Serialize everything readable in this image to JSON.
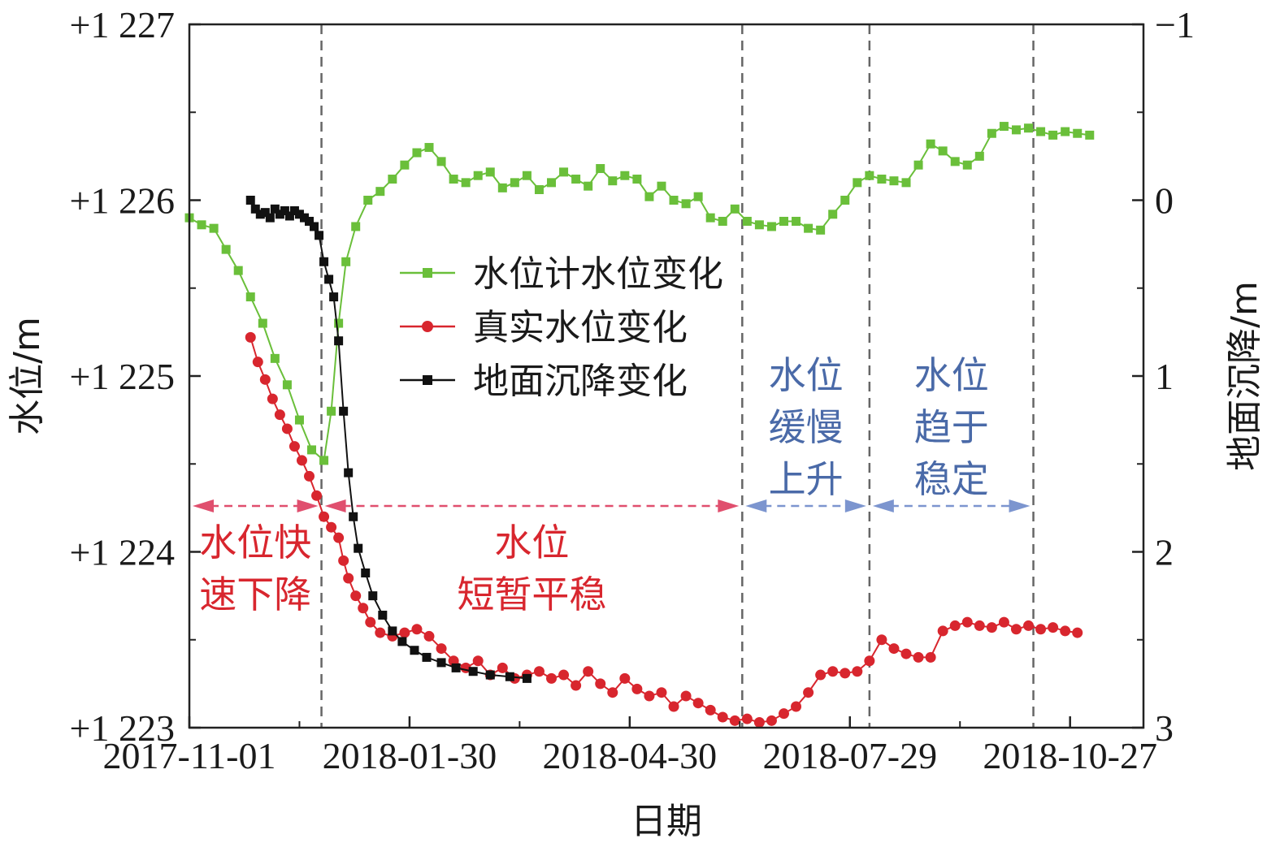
{
  "chart_data": {
    "type": "line",
    "xlabel": "日期",
    "ylabel": "水位/m",
    "y2label": "地面沉降/m",
    "x_ticks": [
      "2017-11-01",
      "2018-01-30",
      "2018-04-30",
      "2018-07-29",
      "2018-10-27"
    ],
    "xlim": [
      "2017-11-01",
      "2018-11-26"
    ],
    "y_ticks": [
      "+1 223",
      "+1 224",
      "+1 225",
      "+1 226",
      "+1 227"
    ],
    "ylim": [
      1223,
      1227
    ],
    "y2_ticks": [
      "−1",
      "0",
      "1",
      "2",
      "3"
    ],
    "y2lim": [
      3,
      -1
    ],
    "y2_inverted": true,
    "grid": false,
    "legend_position": "center-left",
    "phase_boundaries": [
      "2017-12-25",
      "2018-06-15",
      "2018-08-06",
      "2018-10-12"
    ],
    "phases": [
      {
        "lines": [
          "水位快",
          "速下降"
        ],
        "color": "#d8262e",
        "start": "2017-11-01",
        "end": "2017-12-25"
      },
      {
        "lines": [
          "水位",
          "短暂平稳"
        ],
        "color": "#d8262e",
        "start": "2017-12-25",
        "end": "2018-06-15"
      },
      {
        "lines": [
          "水位",
          "缓慢",
          "上升"
        ],
        "color": "#4a6aa8",
        "start": "2018-06-15",
        "end": "2018-08-06"
      },
      {
        "lines": [
          "水位",
          "趋于",
          "稳定"
        ],
        "color": "#4a6aa8",
        "start": "2018-08-06",
        "end": "2018-10-12"
      }
    ],
    "series": [
      {
        "name": "水位计水位变化",
        "axis": "left",
        "color": "#6abf3a",
        "marker": "square",
        "points": [
          [
            "2017-11-01",
            1225.9
          ],
          [
            "2017-11-06",
            1225.86
          ],
          [
            "2017-11-11",
            1225.84
          ],
          [
            "2017-11-16",
            1225.72
          ],
          [
            "2017-11-21",
            1225.6
          ],
          [
            "2017-11-26",
            1225.45
          ],
          [
            "2017-12-01",
            1225.3
          ],
          [
            "2017-12-06",
            1225.1
          ],
          [
            "2017-12-11",
            1224.95
          ],
          [
            "2017-12-16",
            1224.75
          ],
          [
            "2017-12-21",
            1224.58
          ],
          [
            "2017-12-26",
            1224.52
          ],
          [
            "2017-12-29",
            1224.8
          ],
          [
            "2018-01-01",
            1225.3
          ],
          [
            "2018-01-04",
            1225.65
          ],
          [
            "2018-01-08",
            1225.85
          ],
          [
            "2018-01-13",
            1226.0
          ],
          [
            "2018-01-18",
            1226.05
          ],
          [
            "2018-01-23",
            1226.12
          ],
          [
            "2018-01-28",
            1226.2
          ],
          [
            "2018-02-02",
            1226.27
          ],
          [
            "2018-02-07",
            1226.3
          ],
          [
            "2018-02-12",
            1226.22
          ],
          [
            "2018-02-17",
            1226.12
          ],
          [
            "2018-02-22",
            1226.1
          ],
          [
            "2018-02-27",
            1226.14
          ],
          [
            "2018-03-04",
            1226.16
          ],
          [
            "2018-03-09",
            1226.07
          ],
          [
            "2018-03-14",
            1226.1
          ],
          [
            "2018-03-19",
            1226.14
          ],
          [
            "2018-03-24",
            1226.06
          ],
          [
            "2018-03-29",
            1226.1
          ],
          [
            "2018-04-03",
            1226.16
          ],
          [
            "2018-04-08",
            1226.12
          ],
          [
            "2018-04-13",
            1226.08
          ],
          [
            "2018-04-18",
            1226.18
          ],
          [
            "2018-04-23",
            1226.11
          ],
          [
            "2018-04-28",
            1226.14
          ],
          [
            "2018-05-03",
            1226.12
          ],
          [
            "2018-05-08",
            1226.02
          ],
          [
            "2018-05-13",
            1226.08
          ],
          [
            "2018-05-18",
            1226.0
          ],
          [
            "2018-05-23",
            1225.98
          ],
          [
            "2018-05-28",
            1226.02
          ],
          [
            "2018-06-02",
            1225.9
          ],
          [
            "2018-06-07",
            1225.88
          ],
          [
            "2018-06-12",
            1225.95
          ],
          [
            "2018-06-17",
            1225.88
          ],
          [
            "2018-06-22",
            1225.86
          ],
          [
            "2018-06-27",
            1225.85
          ],
          [
            "2018-07-02",
            1225.88
          ],
          [
            "2018-07-07",
            1225.88
          ],
          [
            "2018-07-12",
            1225.84
          ],
          [
            "2018-07-17",
            1225.83
          ],
          [
            "2018-07-22",
            1225.92
          ],
          [
            "2018-07-27",
            1226.0
          ],
          [
            "2018-08-01",
            1226.1
          ],
          [
            "2018-08-06",
            1226.14
          ],
          [
            "2018-08-11",
            1226.12
          ],
          [
            "2018-08-16",
            1226.11
          ],
          [
            "2018-08-21",
            1226.1
          ],
          [
            "2018-08-26",
            1226.2
          ],
          [
            "2018-08-31",
            1226.32
          ],
          [
            "2018-09-05",
            1226.28
          ],
          [
            "2018-09-10",
            1226.22
          ],
          [
            "2018-09-15",
            1226.2
          ],
          [
            "2018-09-20",
            1226.25
          ],
          [
            "2018-09-25",
            1226.38
          ],
          [
            "2018-09-30",
            1226.42
          ],
          [
            "2018-10-05",
            1226.4
          ],
          [
            "2018-10-10",
            1226.41
          ],
          [
            "2018-10-15",
            1226.39
          ],
          [
            "2018-10-20",
            1226.37
          ],
          [
            "2018-10-25",
            1226.39
          ],
          [
            "2018-10-30",
            1226.38
          ],
          [
            "2018-11-04",
            1226.37
          ]
        ]
      },
      {
        "name": "真实水位变化",
        "axis": "left",
        "color": "#d8262e",
        "marker": "circle",
        "points": [
          [
            "2017-11-26",
            1225.22
          ],
          [
            "2017-11-29",
            1225.08
          ],
          [
            "2017-12-02",
            1224.98
          ],
          [
            "2017-12-05",
            1224.87
          ],
          [
            "2017-12-08",
            1224.78
          ],
          [
            "2017-12-11",
            1224.7
          ],
          [
            "2017-12-14",
            1224.6
          ],
          [
            "2017-12-17",
            1224.52
          ],
          [
            "2017-12-20",
            1224.43
          ],
          [
            "2017-12-23",
            1224.32
          ],
          [
            "2017-12-26",
            1224.2
          ],
          [
            "2017-12-29",
            1224.14
          ],
          [
            "2018-01-01",
            1224.08
          ],
          [
            "2018-01-03",
            1223.95
          ],
          [
            "2018-01-05",
            1223.85
          ],
          [
            "2018-01-08",
            1223.75
          ],
          [
            "2018-01-11",
            1223.68
          ],
          [
            "2018-01-14",
            1223.6
          ],
          [
            "2018-01-18",
            1223.54
          ],
          [
            "2018-01-23",
            1223.52
          ],
          [
            "2018-01-28",
            1223.54
          ],
          [
            "2018-02-02",
            1223.56
          ],
          [
            "2018-02-07",
            1223.52
          ],
          [
            "2018-02-12",
            1223.45
          ],
          [
            "2018-02-17",
            1223.38
          ],
          [
            "2018-02-22",
            1223.34
          ],
          [
            "2018-02-27",
            1223.38
          ],
          [
            "2018-03-04",
            1223.3
          ],
          [
            "2018-03-09",
            1223.34
          ],
          [
            "2018-03-14",
            1223.28
          ],
          [
            "2018-03-19",
            1223.3
          ],
          [
            "2018-03-24",
            1223.32
          ],
          [
            "2018-03-29",
            1223.28
          ],
          [
            "2018-04-03",
            1223.3
          ],
          [
            "2018-04-08",
            1223.24
          ],
          [
            "2018-04-13",
            1223.32
          ],
          [
            "2018-04-18",
            1223.25
          ],
          [
            "2018-04-23",
            1223.2
          ],
          [
            "2018-04-28",
            1223.28
          ],
          [
            "2018-05-03",
            1223.22
          ],
          [
            "2018-05-08",
            1223.18
          ],
          [
            "2018-05-13",
            1223.2
          ],
          [
            "2018-05-18",
            1223.12
          ],
          [
            "2018-05-23",
            1223.18
          ],
          [
            "2018-05-28",
            1223.14
          ],
          [
            "2018-06-02",
            1223.1
          ],
          [
            "2018-06-07",
            1223.06
          ],
          [
            "2018-06-12",
            1223.04
          ],
          [
            "2018-06-17",
            1223.05
          ],
          [
            "2018-06-22",
            1223.03
          ],
          [
            "2018-06-27",
            1223.04
          ],
          [
            "2018-07-02",
            1223.08
          ],
          [
            "2018-07-07",
            1223.12
          ],
          [
            "2018-07-12",
            1223.2
          ],
          [
            "2018-07-17",
            1223.3
          ],
          [
            "2018-07-22",
            1223.32
          ],
          [
            "2018-07-27",
            1223.31
          ],
          [
            "2018-08-01",
            1223.32
          ],
          [
            "2018-08-06",
            1223.38
          ],
          [
            "2018-08-11",
            1223.5
          ],
          [
            "2018-08-16",
            1223.45
          ],
          [
            "2018-08-21",
            1223.42
          ],
          [
            "2018-08-26",
            1223.4
          ],
          [
            "2018-08-31",
            1223.4
          ],
          [
            "2018-09-05",
            1223.55
          ],
          [
            "2018-09-10",
            1223.58
          ],
          [
            "2018-09-15",
            1223.6
          ],
          [
            "2018-09-20",
            1223.58
          ],
          [
            "2018-09-25",
            1223.57
          ],
          [
            "2018-09-30",
            1223.6
          ],
          [
            "2018-10-05",
            1223.56
          ],
          [
            "2018-10-10",
            1223.58
          ],
          [
            "2018-10-15",
            1223.56
          ],
          [
            "2018-10-20",
            1223.57
          ],
          [
            "2018-10-25",
            1223.55
          ],
          [
            "2018-10-30",
            1223.54
          ]
        ]
      },
      {
        "name": "地面沉降变化",
        "axis": "right",
        "color": "#111111",
        "marker": "square",
        "points": [
          [
            "2017-11-26",
            0.0
          ],
          [
            "2017-11-28",
            0.05
          ],
          [
            "2017-11-30",
            0.08
          ],
          [
            "2017-12-02",
            0.07
          ],
          [
            "2017-12-04",
            0.1
          ],
          [
            "2017-12-06",
            0.05
          ],
          [
            "2017-12-08",
            0.08
          ],
          [
            "2017-12-10",
            0.06
          ],
          [
            "2017-12-12",
            0.09
          ],
          [
            "2017-12-14",
            0.06
          ],
          [
            "2017-12-16",
            0.08
          ],
          [
            "2017-12-18",
            0.1
          ],
          [
            "2017-12-20",
            0.12
          ],
          [
            "2017-12-22",
            0.15
          ],
          [
            "2017-12-24",
            0.2
          ],
          [
            "2017-12-26",
            0.35
          ],
          [
            "2017-12-28",
            0.45
          ],
          [
            "2017-12-30",
            0.55
          ],
          [
            "2018-01-01",
            0.8
          ],
          [
            "2018-01-03",
            1.2
          ],
          [
            "2018-01-05",
            1.55
          ],
          [
            "2018-01-07",
            1.8
          ],
          [
            "2018-01-09",
            1.98
          ],
          [
            "2018-01-12",
            2.12
          ],
          [
            "2018-01-15",
            2.25
          ],
          [
            "2018-01-19",
            2.36
          ],
          [
            "2018-01-23",
            2.45
          ],
          [
            "2018-01-27",
            2.51
          ],
          [
            "2018-02-01",
            2.56
          ],
          [
            "2018-02-06",
            2.6
          ],
          [
            "2018-02-12",
            2.63
          ],
          [
            "2018-02-18",
            2.66
          ],
          [
            "2018-02-25",
            2.68
          ],
          [
            "2018-03-04",
            2.7
          ],
          [
            "2018-03-12",
            2.71
          ],
          [
            "2018-03-19",
            2.72
          ]
        ]
      }
    ]
  }
}
